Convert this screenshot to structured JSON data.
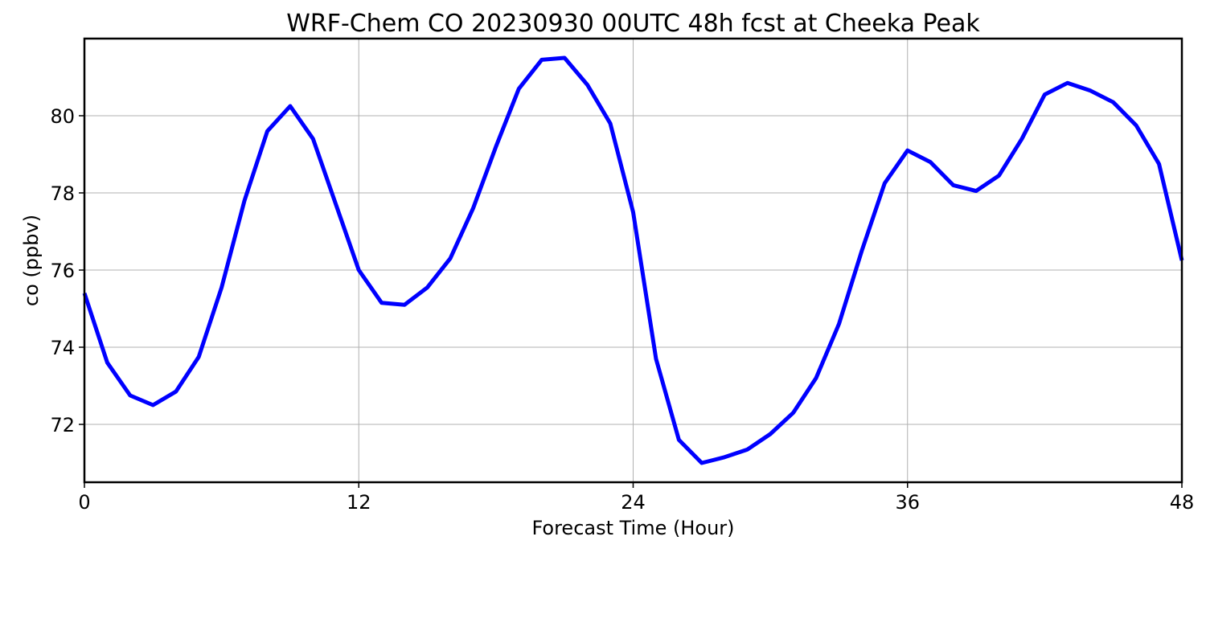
{
  "chart_data": {
    "type": "line",
    "title": "WRF-Chem CO  20230930 00UTC 48h fcst at Cheeka Peak",
    "xlabel": "Forecast Time (Hour)",
    "ylabel": "co  (ppbv)",
    "xlim": [
      0,
      48
    ],
    "ylim": [
      70.5,
      82
    ],
    "xticks": [
      0,
      12,
      24,
      36,
      48
    ],
    "yticks": [
      72,
      74,
      76,
      78,
      80
    ],
    "grid": true,
    "x": [
      0,
      1,
      2,
      3,
      4,
      5,
      6,
      7,
      8,
      9,
      10,
      11,
      12,
      13,
      14,
      15,
      16,
      17,
      18,
      19,
      20,
      21,
      22,
      23,
      24,
      25,
      26,
      27,
      28,
      29,
      30,
      31,
      32,
      33,
      34,
      35,
      36,
      37,
      38,
      39,
      40,
      41,
      42,
      43,
      44,
      45,
      46,
      47,
      48
    ],
    "series": [
      {
        "color": "#0000ff",
        "values": [
          75.4,
          73.6,
          72.75,
          72.5,
          72.85,
          73.75,
          75.55,
          77.8,
          79.6,
          80.25,
          79.4,
          77.7,
          76.0,
          75.15,
          75.1,
          75.55,
          76.3,
          77.6,
          79.2,
          80.7,
          81.45,
          81.5,
          80.8,
          79.8,
          77.5,
          73.7,
          71.6,
          71.0,
          71.15,
          71.35,
          71.75,
          72.3,
          73.2,
          74.6,
          76.5,
          78.25,
          79.1,
          78.8,
          78.2,
          78.05,
          78.45,
          79.4,
          80.55,
          80.85,
          80.65,
          80.35,
          79.75,
          78.75,
          76.25
        ]
      }
    ]
  }
}
